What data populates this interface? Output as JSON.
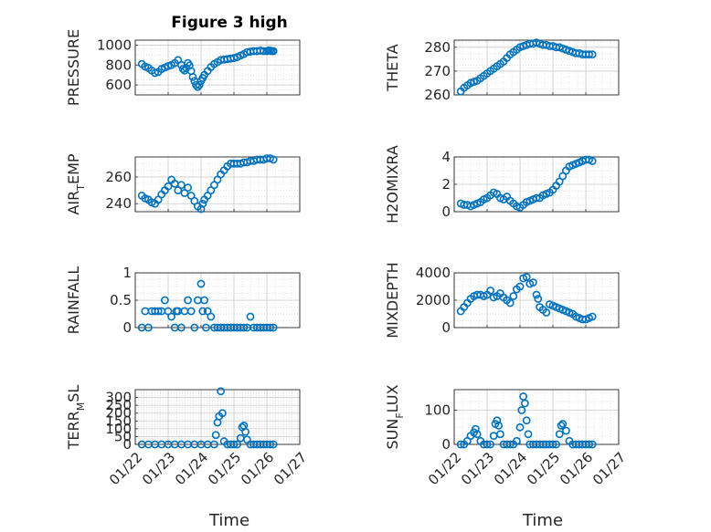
{
  "figure": {
    "title": "Figure 3 high",
    "marker_color": "#0072BD"
  },
  "chart_data": [
    {
      "type": "scatter",
      "title": "Figure 3 high",
      "ylabel": "PRESSURE",
      "ylim": [
        500,
        1050
      ],
      "yticks": [
        600,
        800,
        1000
      ],
      "xlim": [
        "01/22",
        "01/27"
      ],
      "xticks": [
        "01/22",
        "01/23",
        "01/24",
        "01/25",
        "01/26",
        "01/27"
      ],
      "grid": true,
      "x": [
        0.2,
        0.3,
        0.4,
        0.5,
        0.6,
        0.7,
        0.8,
        0.9,
        1.0,
        1.1,
        1.2,
        1.3,
        1.4,
        1.45,
        1.5,
        1.55,
        1.6,
        1.65,
        1.7,
        1.75,
        1.8,
        1.85,
        1.9,
        1.95,
        2.0,
        2.05,
        2.1,
        2.2,
        2.3,
        2.4,
        2.5,
        2.6,
        2.7,
        2.8,
        2.9,
        3.0,
        3.1,
        3.2,
        3.3,
        3.4,
        3.5,
        3.6,
        3.7,
        3.8,
        3.9,
        4.0,
        4.05,
        4.1,
        4.15,
        4.2
      ],
      "y": [
        810,
        785,
        770,
        745,
        720,
        730,
        760,
        775,
        790,
        800,
        820,
        850,
        800,
        760,
        745,
        770,
        820,
        795,
        740,
        680,
        640,
        600,
        580,
        600,
        640,
        670,
        700,
        740,
        780,
        810,
        830,
        850,
        855,
        860,
        865,
        870,
        880,
        895,
        910,
        930,
        935,
        940,
        940,
        945,
        940,
        940,
        945,
        945,
        940,
        940
      ]
    },
    {
      "type": "scatter",
      "ylabel": "THETA",
      "ylim": [
        260,
        283
      ],
      "yticks": [
        260,
        270,
        280
      ],
      "xlim": [
        "01/22",
        "01/27"
      ],
      "grid": true,
      "x": [
        0.2,
        0.3,
        0.4,
        0.5,
        0.6,
        0.7,
        0.8,
        0.9,
        1.0,
        1.1,
        1.2,
        1.3,
        1.4,
        1.5,
        1.6,
        1.7,
        1.8,
        1.9,
        2.0,
        2.1,
        2.2,
        2.3,
        2.4,
        2.5,
        2.6,
        2.7,
        2.8,
        2.9,
        3.0,
        3.1,
        3.2,
        3.3,
        3.4,
        3.5,
        3.6,
        3.7,
        3.8,
        3.9,
        4.0,
        4.1,
        4.2
      ],
      "y": [
        261.5,
        263.0,
        264.0,
        265.0,
        265.5,
        266.0,
        267.0,
        268.0,
        269.0,
        270.0,
        271.0,
        272.0,
        273.0,
        274.0,
        275.5,
        277.0,
        278.0,
        279.0,
        280.0,
        280.5,
        281.0,
        281.5,
        281.5,
        282.0,
        281.5,
        281.0,
        281.0,
        280.5,
        280.5,
        280.0,
        280.0,
        279.5,
        279.0,
        278.5,
        278.0,
        277.5,
        277.5,
        277.0,
        277.0,
        277.0,
        277.0
      ]
    },
    {
      "type": "scatter",
      "ylabel": "AIR_TEMP",
      "ylim": [
        234,
        275
      ],
      "yticks": [
        240,
        260
      ],
      "xlim": [
        "01/22",
        "01/27"
      ],
      "grid": true,
      "x": [
        0.2,
        0.3,
        0.4,
        0.5,
        0.6,
        0.7,
        0.8,
        0.9,
        1.0,
        1.1,
        1.2,
        1.3,
        1.4,
        1.5,
        1.6,
        1.7,
        1.8,
        1.9,
        2.0,
        2.05,
        2.1,
        2.2,
        2.3,
        2.4,
        2.5,
        2.6,
        2.7,
        2.8,
        2.9,
        3.0,
        3.1,
        3.2,
        3.3,
        3.4,
        3.5,
        3.6,
        3.7,
        3.8,
        3.9,
        4.0,
        4.1,
        4.2
      ],
      "y": [
        246,
        244,
        243,
        241,
        240,
        243,
        247,
        250,
        253,
        258,
        255,
        250,
        254,
        248,
        252,
        246,
        242,
        238,
        236,
        240,
        243,
        246,
        250,
        254,
        258,
        262,
        265,
        268,
        270,
        270,
        270,
        270,
        271,
        271,
        272,
        272,
        273,
        273,
        273,
        274,
        274,
        273
      ]
    },
    {
      "type": "scatter",
      "ylabel": "MIXDEPTH",
      "ylim": [
        0,
        4000
      ],
      "yticks": [
        0,
        2000,
        4000
      ],
      "xlim": [
        "01/22",
        "01/27"
      ],
      "grid": true,
      "x": [
        0.2,
        0.3,
        0.4,
        0.5,
        0.6,
        0.7,
        0.8,
        0.9,
        1.0,
        1.1,
        1.2,
        1.3,
        1.4,
        1.5,
        1.6,
        1.7,
        1.8,
        1.9,
        2.0,
        2.1,
        2.2,
        2.3,
        2.4,
        2.5,
        2.55,
        2.6,
        2.7,
        2.8,
        2.9,
        3.0,
        3.1,
        3.2,
        3.3,
        3.4,
        3.5,
        3.6,
        3.7,
        3.8,
        3.9,
        4.0,
        4.1,
        4.2
      ],
      "y": [
        1200,
        1500,
        1800,
        2100,
        2300,
        2400,
        2400,
        2300,
        2400,
        2700,
        2200,
        2300,
        2500,
        2200,
        2000,
        1800,
        2300,
        2800,
        3000,
        3600,
        3700,
        3200,
        3300,
        2400,
        2100,
        1500,
        1300,
        1100,
        1700,
        1600,
        1500,
        1400,
        1300,
        1200,
        1100,
        1000,
        800,
        700,
        600,
        600,
        700,
        800
      ]
    },
    {
      "type": "scatter",
      "ylabel": "H2OMIXRA",
      "ylim": [
        0,
        4
      ],
      "yticks": [
        0,
        2,
        4
      ],
      "xlim": [
        "01/22",
        "01/27"
      ],
      "grid": true,
      "x": [
        0.2,
        0.3,
        0.4,
        0.5,
        0.6,
        0.7,
        0.8,
        0.9,
        1.0,
        1.1,
        1.2,
        1.3,
        1.4,
        1.5,
        1.6,
        1.7,
        1.8,
        1.9,
        2.0,
        2.1,
        2.2,
        2.3,
        2.4,
        2.5,
        2.6,
        2.7,
        2.8,
        2.9,
        3.0,
        3.1,
        3.2,
        3.3,
        3.4,
        3.5,
        3.6,
        3.7,
        3.8,
        3.9,
        4.0,
        4.1,
        4.2
      ],
      "y": [
        0.6,
        0.5,
        0.5,
        0.4,
        0.5,
        0.6,
        0.7,
        0.9,
        1.0,
        1.2,
        1.4,
        1.3,
        1.0,
        0.9,
        1.1,
        0.8,
        0.6,
        0.4,
        0.3,
        0.5,
        0.7,
        0.8,
        0.9,
        1.0,
        1.0,
        1.2,
        1.3,
        1.4,
        1.6,
        1.9,
        2.2,
        2.6,
        3.0,
        3.3,
        3.4,
        3.5,
        3.6,
        3.7,
        3.8,
        3.8,
        3.7
      ]
    },
    {
      "type": "scatter",
      "ylabel": "RAINFALL",
      "ylim": [
        0,
        1
      ],
      "yticks": [
        0,
        0.5,
        1
      ],
      "xlim": [
        "01/22",
        "01/27"
      ],
      "grid": true,
      "x": [
        0.2,
        0.3,
        0.4,
        0.5,
        0.6,
        0.7,
        0.8,
        0.9,
        1.0,
        1.1,
        1.2,
        1.25,
        1.3,
        1.4,
        1.5,
        1.6,
        1.7,
        1.8,
        1.9,
        2.0,
        2.05,
        2.1,
        2.15,
        2.2,
        2.3,
        2.4,
        2.5,
        2.6,
        2.7,
        2.8,
        2.9,
        3.0,
        3.1,
        3.2,
        3.3,
        3.4,
        3.5,
        3.6,
        3.7,
        3.8,
        3.9,
        4.0,
        4.1,
        4.2
      ],
      "y": [
        0,
        0.3,
        0,
        0.3,
        0.3,
        0.3,
        0.3,
        0.5,
        0.3,
        0.2,
        0,
        0.3,
        0.3,
        0,
        0.3,
        0.5,
        0.3,
        0,
        0.5,
        0.8,
        0.3,
        0.5,
        0,
        0.3,
        0.2,
        0,
        0,
        0,
        0,
        0,
        0,
        0,
        0,
        0,
        0,
        0,
        0.2,
        0,
        0,
        0,
        0,
        0,
        0,
        0
      ]
    },
    {
      "type": "scatter",
      "ylabel": "TERR_MSL",
      "ylim": [
        0,
        350
      ],
      "yticks": [
        0,
        50,
        100,
        150,
        200,
        250,
        300
      ],
      "xlim": [
        "01/22",
        "01/27"
      ],
      "xticks": [
        "01/22",
        "01/23",
        "01/24",
        "01/25",
        "01/26",
        "01/27"
      ],
      "grid": true,
      "x": [
        0.2,
        0.4,
        0.6,
        0.8,
        1.0,
        1.2,
        1.4,
        1.6,
        1.8,
        2.0,
        2.2,
        2.4,
        2.45,
        2.5,
        2.55,
        2.6,
        2.65,
        2.7,
        2.8,
        2.9,
        3.0,
        3.1,
        3.2,
        3.25,
        3.3,
        3.35,
        3.4,
        3.5,
        3.6,
        3.7,
        3.8,
        3.9,
        4.0,
        4.1,
        4.2
      ],
      "y": [
        0,
        0,
        0,
        0,
        0,
        0,
        0,
        0,
        0,
        0,
        0,
        0,
        60,
        140,
        180,
        340,
        200,
        20,
        0,
        0,
        0,
        0,
        40,
        110,
        120,
        80,
        30,
        0,
        0,
        0,
        0,
        0,
        0,
        0,
        0
      ]
    },
    {
      "type": "scatter",
      "ylabel": "SUN_FLUX",
      "ylim": [
        0,
        160
      ],
      "yticks": [
        0,
        100
      ],
      "xlim": [
        "01/22",
        "01/27"
      ],
      "xticks": [
        "01/22",
        "01/23",
        "01/24",
        "01/25",
        "01/26",
        "01/27"
      ],
      "grid": true,
      "x": [
        0.2,
        0.3,
        0.4,
        0.5,
        0.6,
        0.65,
        0.7,
        0.8,
        0.9,
        1.0,
        1.1,
        1.2,
        1.25,
        1.3,
        1.35,
        1.4,
        1.5,
        1.6,
        1.7,
        1.8,
        1.9,
        2.0,
        2.05,
        2.1,
        2.15,
        2.2,
        2.25,
        2.3,
        2.4,
        2.5,
        2.6,
        2.7,
        2.8,
        2.9,
        3.0,
        3.1,
        3.2,
        3.25,
        3.3,
        3.4,
        3.5,
        3.6,
        3.7,
        3.8,
        3.9,
        4.0,
        4.1,
        4.2
      ],
      "y": [
        0,
        0,
        10,
        25,
        35,
        45,
        30,
        10,
        0,
        0,
        0,
        25,
        60,
        70,
        55,
        30,
        0,
        0,
        0,
        0,
        10,
        50,
        100,
        140,
        120,
        70,
        30,
        0,
        0,
        0,
        0,
        0,
        0,
        0,
        0,
        0,
        30,
        55,
        60,
        40,
        10,
        0,
        0,
        0,
        0,
        0,
        0,
        0
      ]
    }
  ],
  "x_axis": {
    "label": "Time",
    "ticks": [
      "01/22",
      "01/23",
      "01/24",
      "01/25",
      "01/26",
      "01/27"
    ]
  }
}
